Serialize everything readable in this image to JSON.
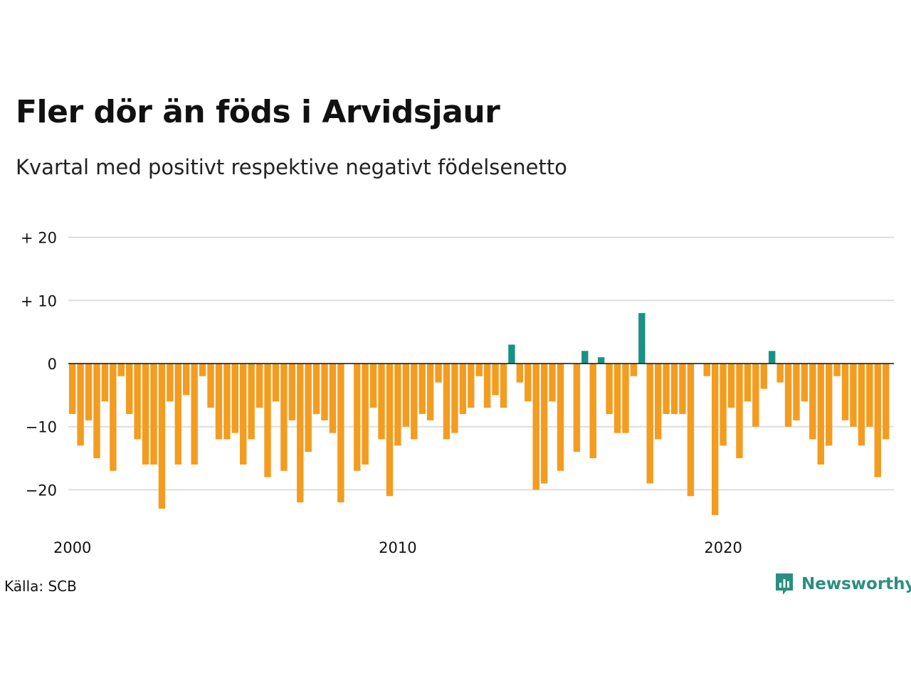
{
  "header": {
    "title": "Fler dör än föds i Arvidsjaur",
    "subtitle": "Kvartal med positivt respektive negativt födelsenetto"
  },
  "footer": {
    "source": "Källa: SCB",
    "brand": "Newsworthy",
    "brand_icon": "newsworthy-logo-icon"
  },
  "colors": {
    "positive": "#1a9186",
    "negative": "#f39c1f",
    "grid": "#dddddd",
    "brand": "#2a8f80"
  },
  "chart_data": {
    "type": "bar",
    "x_start": "2000 Q1",
    "x_ticks": [
      "2000",
      "2010",
      "2020"
    ],
    "y_ticks": [
      "+ 20",
      "+ 10",
      "0",
      "−10",
      "−20"
    ],
    "ylim": [
      -25,
      20
    ],
    "grid": true,
    "values": [
      -8,
      -13,
      -9,
      -15,
      -6,
      -17,
      -2,
      -8,
      -12,
      -16,
      -16,
      -23,
      -6,
      -16,
      -5,
      -16,
      -2,
      -7,
      -12,
      -12,
      -11,
      -16,
      -12,
      -7,
      -18,
      -6,
      -17,
      -9,
      -22,
      -14,
      -8,
      -9,
      -11,
      -22,
      0,
      -17,
      -16,
      -7,
      -12,
      -21,
      -13,
      -10,
      -12,
      -8,
      -9,
      -3,
      -12,
      -11,
      -8,
      -7,
      -2,
      -7,
      -5,
      -7,
      3,
      -3,
      -6,
      -20,
      -19,
      -6,
      -17,
      0,
      -14,
      2,
      -15,
      1,
      -8,
      -11,
      -11,
      -2,
      8,
      -19,
      -12,
      -8,
      -8,
      -8,
      -21,
      0,
      -2,
      -24,
      -13,
      -7,
      -15,
      -6,
      -10,
      -4,
      2,
      -3,
      -10,
      -9,
      -6,
      -12,
      -16,
      -13,
      -2,
      -9,
      -10,
      -13,
      -10,
      -18,
      -12
    ]
  }
}
